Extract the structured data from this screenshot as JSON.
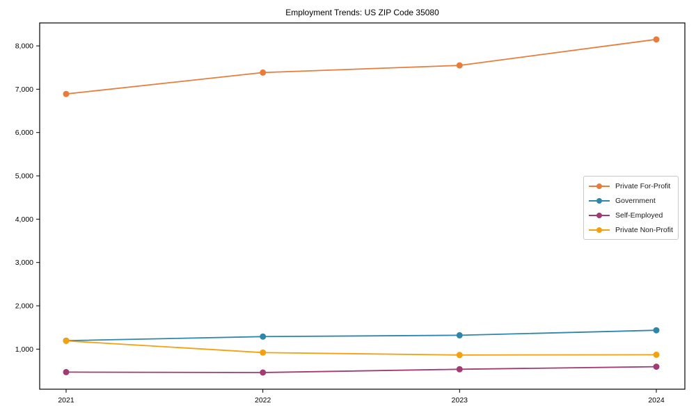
{
  "chart_data": {
    "type": "line",
    "title": "Employment Trends: US ZIP Code 35080",
    "xlabel": "",
    "ylabel": "",
    "x": [
      2021,
      2022,
      2023,
      2024
    ],
    "xtick_labels": [
      "2021",
      "2022",
      "2023",
      "2024"
    ],
    "ytick_values": [
      1000,
      2000,
      3000,
      4000,
      5000,
      6000,
      7000,
      8000
    ],
    "ytick_labels": [
      "1,000",
      "2,000",
      "3,000",
      "4,000",
      "5,000",
      "6,000",
      "7,000",
      "8,000"
    ],
    "ylim": [
      75,
      8530
    ],
    "grid": false,
    "legend_position": "center right",
    "marker": "circle",
    "axis_color": "#000000",
    "series": [
      {
        "name": "Private For-Profit",
        "color": "#E87D3B",
        "values": [
          6890,
          7385,
          7550,
          8150
        ]
      },
      {
        "name": "Government",
        "color": "#2E86AB",
        "values": [
          1195,
          1290,
          1320,
          1435
        ]
      },
      {
        "name": "Self-Employed",
        "color": "#A23B72",
        "values": [
          470,
          460,
          535,
          595
        ]
      },
      {
        "name": "Private Non-Profit",
        "color": "#F5A00E",
        "values": [
          1190,
          920,
          865,
          870
        ]
      }
    ]
  }
}
